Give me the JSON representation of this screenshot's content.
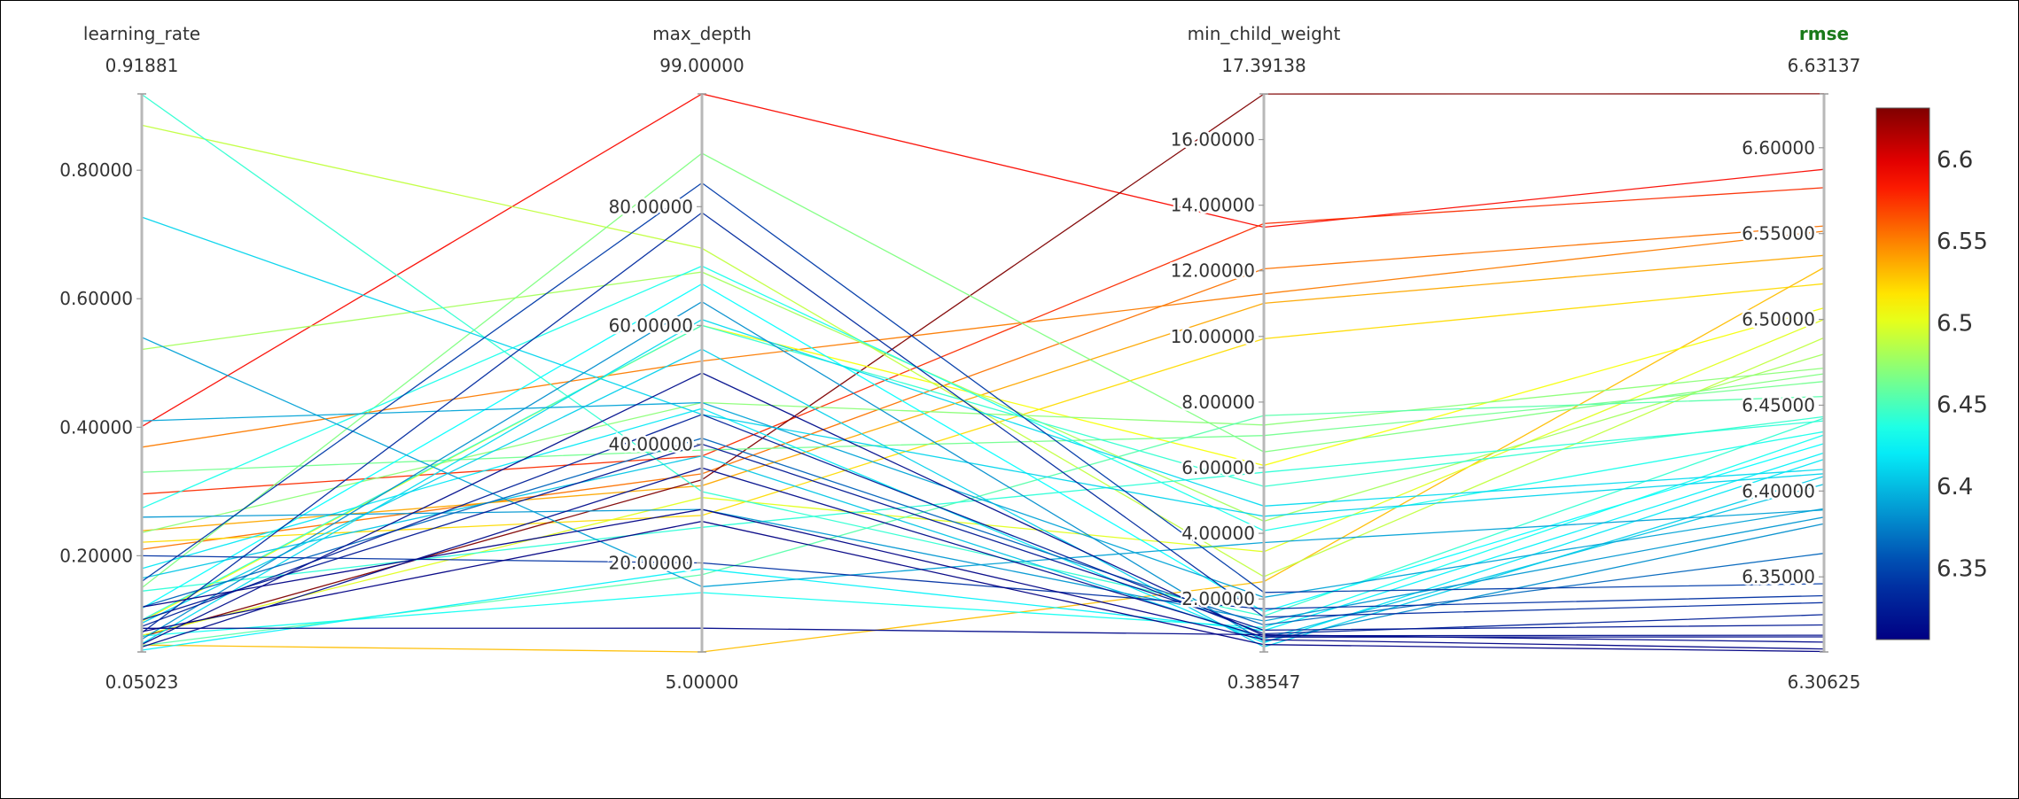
{
  "chart_data": {
    "type": "parallel_coordinates",
    "axes": [
      {
        "name": "learning_rate",
        "range": [
          0.05023,
          0.91881
        ],
        "max_label": "0.91881",
        "min_label": "0.05023",
        "ticks": [
          {
            "value": 0.2,
            "label": "0.20000"
          },
          {
            "value": 0.4,
            "label": "0.40000"
          },
          {
            "value": 0.6,
            "label": "0.60000"
          },
          {
            "value": 0.8,
            "label": "0.80000"
          }
        ],
        "highlight": false
      },
      {
        "name": "max_depth",
        "range": [
          5.0,
          99.0
        ],
        "max_label": "99.00000",
        "min_label": "5.00000",
        "ticks": [
          {
            "value": 20,
            "label": "20.00000"
          },
          {
            "value": 40,
            "label": "40.00000"
          },
          {
            "value": 60,
            "label": "60.00000"
          },
          {
            "value": 80,
            "label": "80.00000"
          }
        ],
        "highlight": false
      },
      {
        "name": "min_child_weight",
        "range": [
          0.38547,
          17.39138
        ],
        "max_label": "17.39138",
        "min_label": "0.38547",
        "ticks": [
          {
            "value": 2,
            "label": "2.00000"
          },
          {
            "value": 4,
            "label": "4.00000"
          },
          {
            "value": 6,
            "label": "6.00000"
          },
          {
            "value": 8,
            "label": "8.00000"
          },
          {
            "value": 10,
            "label": "10.00000"
          },
          {
            "value": 12,
            "label": "12.00000"
          },
          {
            "value": 14,
            "label": "14.00000"
          },
          {
            "value": 16,
            "label": "16.00000"
          }
        ],
        "highlight": false
      },
      {
        "name": "rmse",
        "range": [
          6.30625,
          6.63137
        ],
        "max_label": "6.63137",
        "min_label": "6.30625",
        "ticks": [
          {
            "value": 6.35,
            "label": "6.35000"
          },
          {
            "value": 6.4,
            "label": "6.40000"
          },
          {
            "value": 6.45,
            "label": "6.45000"
          },
          {
            "value": 6.5,
            "label": "6.50000"
          },
          {
            "value": 6.55,
            "label": "6.55000"
          },
          {
            "value": 6.6,
            "label": "6.60000"
          }
        ],
        "highlight": true,
        "highlight_color": "#1a7a1a"
      }
    ],
    "colorscale": {
      "name": "jet",
      "range": [
        6.30625,
        6.63137
      ],
      "ticks": [
        {
          "value": 6.35,
          "label": "6.35"
        },
        {
          "value": 6.4,
          "label": "6.4"
        },
        {
          "value": 6.45,
          "label": "6.45"
        },
        {
          "value": 6.5,
          "label": "6.5"
        },
        {
          "value": 6.55,
          "label": "6.55"
        },
        {
          "value": 6.6,
          "label": "6.6"
        }
      ]
    },
    "lines": [
      [
        0.401,
        99.0,
        13.33,
        6.5874
      ],
      [
        0.296,
        38.0,
        13.44,
        6.5767
      ],
      [
        0.21,
        35.0,
        12.06,
        6.5544
      ],
      [
        0.369,
        54.0,
        11.3,
        6.5514
      ],
      [
        0.239,
        33.0,
        11.01,
        6.5373
      ],
      [
        0.221,
        28.0,
        9.93,
        6.5208
      ],
      [
        0.074,
        34.0,
        17.39,
        6.6314
      ],
      [
        0.061,
        5.0,
        2.53,
        6.5302
      ],
      [
        0.098,
        60.0,
        6.07,
        6.5067
      ],
      [
        0.076,
        31.0,
        3.44,
        6.5
      ],
      [
        0.87,
        73.0,
        2.68,
        6.4893
      ],
      [
        0.521,
        69.0,
        4.37,
        6.4798
      ],
      [
        0.236,
        47.0,
        7.3,
        6.4716
      ],
      [
        0.15,
        89.0,
        6.48,
        6.4683
      ],
      [
        0.33,
        39.0,
        6.98,
        6.4638
      ],
      [
        0.06,
        18.0,
        7.59,
        6.4551
      ],
      [
        0.918,
        32.0,
        1.48,
        6.4425
      ],
      [
        0.274,
        70.0,
        4.08,
        6.4346
      ],
      [
        0.1,
        60.0,
        5.43,
        6.4433
      ],
      [
        0.145,
        26.0,
        5.86,
        6.4409
      ],
      [
        0.118,
        67.0,
        1.61,
        6.4277
      ],
      [
        0.075,
        15.0,
        1.13,
        6.4327
      ],
      [
        0.053,
        19.0,
        1.04,
        6.4222
      ],
      [
        0.063,
        61.0,
        4.83,
        6.4126
      ],
      [
        0.18,
        46.0,
        0.67,
        6.4185
      ],
      [
        0.095,
        56.0,
        0.54,
        6.4086
      ],
      [
        0.727,
        45.0,
        4.52,
        6.4101
      ],
      [
        0.165,
        38.0,
        0.79,
        6.404
      ],
      [
        0.41,
        47.0,
        2.05,
        6.3897
      ],
      [
        0.54,
        16.0,
        3.72,
        6.389
      ],
      [
        0.26,
        29.0,
        1.33,
        6.3848
      ],
      [
        0.07,
        64.0,
        0.71,
        6.381
      ],
      [
        0.12,
        41.0,
        1.21,
        6.3637
      ],
      [
        0.16,
        84.0,
        2.2,
        6.346
      ],
      [
        0.2,
        20.0,
        1.7,
        6.339
      ],
      [
        0.08,
        79.0,
        1.45,
        6.335
      ],
      [
        0.09,
        45.0,
        0.94,
        6.328
      ],
      [
        0.1,
        40.0,
        1.05,
        6.322
      ],
      [
        0.062,
        52.0,
        0.88,
        6.316
      ],
      [
        0.087,
        9.0,
        0.91,
        6.312
      ],
      [
        0.12,
        29.0,
        0.76,
        6.308
      ],
      [
        0.082,
        27.0,
        0.61,
        6.3065
      ],
      [
        0.058,
        36.0,
        0.84,
        6.315
      ]
    ]
  }
}
